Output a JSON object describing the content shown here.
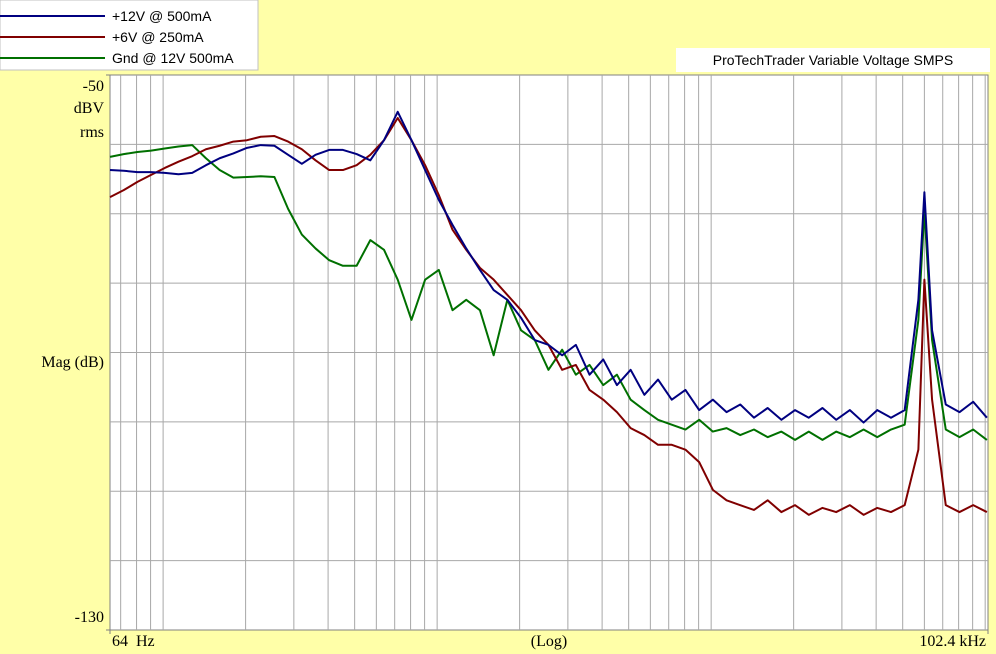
{
  "chart_data": {
    "type": "line",
    "title": "ProTechTrader Variable Voltage SMPS",
    "xlabel": "(Log)",
    "ylabel": "Mag (dB)",
    "yunit": [
      "dBV",
      "rms"
    ],
    "xscale": "log",
    "xlim": [
      64,
      102400
    ],
    "ylim": [
      -130,
      -50
    ],
    "xticks": [
      {
        "value": 64,
        "label": "64  Hz"
      },
      {
        "value": 102400,
        "label": "102.4 kHz"
      }
    ],
    "yticks": [
      -50,
      -130
    ],
    "xgrid": [
      70,
      80,
      90,
      100,
      200,
      300,
      400,
      500,
      600,
      700,
      800,
      900,
      1000,
      2000,
      3000,
      4000,
      5000,
      6000,
      7000,
      8000,
      9000,
      10000,
      20000,
      30000,
      40000,
      50000,
      60000,
      70000,
      80000,
      90000,
      100000
    ],
    "ygrid": [
      -60,
      -70,
      -80,
      -90,
      -100,
      -110,
      -120
    ],
    "grid": true,
    "legend": "top-left",
    "x": [
      64,
      71.8,
      80.6,
      90.4,
      101.4,
      113.8,
      127.7,
      143.3,
      160.8,
      180.4,
      202.4,
      227.1,
      254.8,
      285.9,
      320.8,
      359.9,
      403.8,
      453.1,
      508.4,
      570.4,
      640,
      718,
      806,
      904,
      1014,
      1138,
      1277,
      1433,
      1608,
      1804,
      2024,
      2271,
      2548,
      2859,
      3208,
      3599,
      4038,
      4531,
      5084,
      5704,
      6400,
      7181,
      8057,
      9041,
      10144,
      11382,
      12771,
      14329,
      16077,
      18039,
      20240,
      22710,
      25481,
      28590,
      32079,
      35993,
      40385,
      45313,
      50842,
      57045,
      60000,
      64000,
      71810,
      80570,
      90410,
      101440
    ],
    "series": [
      {
        "name": "+12V @ 500mA",
        "color": "#000080",
        "values": [
          -63.7,
          -63.8,
          -64,
          -64,
          -64.1,
          -64.3,
          -64.1,
          -63,
          -62,
          -61.3,
          -60.5,
          -60.1,
          -60.2,
          -61.5,
          -62.8,
          -61.5,
          -60.8,
          -60.8,
          -61.4,
          -62.3,
          -59.4,
          -55.3,
          -59.4,
          -63.7,
          -68,
          -71.6,
          -75,
          -78.1,
          -81,
          -82.4,
          -85,
          -88.2,
          -88.9,
          -90.4,
          -88.9,
          -93.2,
          -91,
          -94.7,
          -92.5,
          -96.1,
          -93.9,
          -96.8,
          -95.4,
          -98.3,
          -96.8,
          -98.6,
          -97.5,
          -99.4,
          -98,
          -99.7,
          -98.3,
          -99.4,
          -98,
          -99.7,
          -98.3,
          -100.1,
          -98.3,
          -99.4,
          -98.3,
          -82.4,
          -66.9,
          -86.8,
          -97.5,
          -98.6,
          -97.1,
          -99.4
        ]
      },
      {
        "name": "+6V @ 250mA",
        "color": "#800000",
        "values": [
          -67.6,
          -66.6,
          -65.4,
          -64.4,
          -63.4,
          -62.5,
          -61.7,
          -60.7,
          -60.2,
          -59.6,
          -59.4,
          -58.9,
          -58.8,
          -59.6,
          -60.7,
          -62.3,
          -63.7,
          -63.7,
          -63,
          -61.5,
          -59.4,
          -56.2,
          -59.4,
          -63,
          -67.3,
          -72.3,
          -75.2,
          -77.8,
          -79.5,
          -81.7,
          -83.9,
          -86.8,
          -88.9,
          -92.5,
          -91.8,
          -95.4,
          -96.8,
          -98.6,
          -100.9,
          -101.9,
          -103.3,
          -103.3,
          -104,
          -105.8,
          -109.8,
          -111.3,
          -112,
          -112.7,
          -111.3,
          -113,
          -112,
          -113.4,
          -112.4,
          -113,
          -112,
          -113.4,
          -112.4,
          -113,
          -112,
          -104,
          -79.5,
          -96.8,
          -112,
          -113,
          -112,
          -113
        ]
      },
      {
        "name": "Gnd @ 12V 500mA",
        "color": "#007000",
        "values": [
          -61.8,
          -61.4,
          -61.1,
          -60.9,
          -60.6,
          -60.3,
          -60.1,
          -62,
          -63.7,
          -64.8,
          -64.7,
          -64.6,
          -64.7,
          -69.3,
          -73,
          -75,
          -76.7,
          -77.5,
          -77.5,
          -73.8,
          -75.2,
          -79.5,
          -85.3,
          -79.5,
          -78.1,
          -83.9,
          -82.4,
          -83.9,
          -90.4,
          -82.4,
          -86.8,
          -88.2,
          -92.5,
          -89.6,
          -93.2,
          -91.8,
          -94.7,
          -93.2,
          -96.8,
          -98.3,
          -99.7,
          -100.4,
          -101.1,
          -99.7,
          -101.4,
          -100.9,
          -101.9,
          -101.1,
          -102.2,
          -101.4,
          -102.6,
          -101.4,
          -102.6,
          -101.4,
          -102.2,
          -101.1,
          -102.2,
          -101.1,
          -100.4,
          -85.3,
          -69.5,
          -88.2,
          -101.1,
          -102.2,
          -101.1,
          -102.6
        ]
      }
    ]
  }
}
